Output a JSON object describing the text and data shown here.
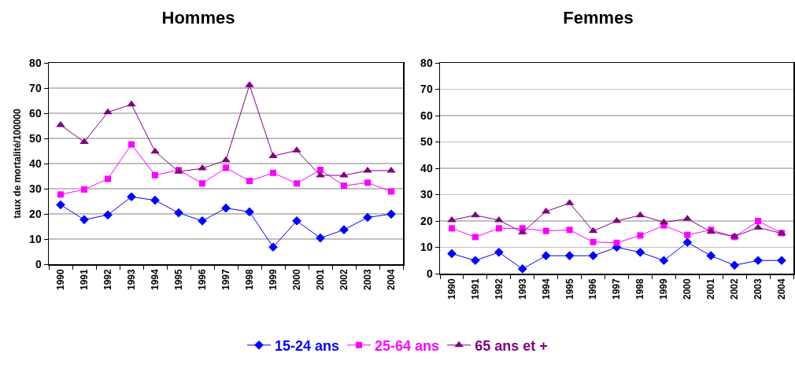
{
  "chart_data": [
    {
      "type": "line",
      "title": "Hommes",
      "ylabel": "taux de mortalité/100000",
      "categories": [
        "1990",
        "1991",
        "1992",
        "1993",
        "1994",
        "1995",
        "1996",
        "1997",
        "1998",
        "1999",
        "2000",
        "2001",
        "2002",
        "2003",
        "2004"
      ],
      "series": [
        {
          "name": "15-24 ans",
          "color": "#0000ff",
          "marker": "diamond",
          "values": [
            23.6,
            17.7,
            19.6,
            26.8,
            25.4,
            20.4,
            17.2,
            22.3,
            20.8,
            6.8,
            17.2,
            10.4,
            13.7,
            18.6,
            19.9
          ]
        },
        {
          "name": "25-64 ans",
          "color": "#ff00ff",
          "marker": "square",
          "values": [
            27.7,
            29.7,
            33.9,
            47.6,
            35.4,
            37.4,
            32.1,
            38.3,
            33.1,
            36.3,
            32.1,
            37.5,
            31.2,
            32.4,
            28.9
          ]
        },
        {
          "name": "65 ans et +",
          "color": "#800080",
          "marker": "triangle",
          "values": [
            55.3,
            48.6,
            60.4,
            63.5,
            44.8,
            36.8,
            38.1,
            41.3,
            71.2,
            43.0,
            45.2,
            35.3,
            35.3,
            37.2,
            37.2
          ]
        }
      ],
      "ylim": [
        0,
        80
      ],
      "yticks": [
        0,
        10,
        20,
        30,
        40,
        50,
        60,
        70,
        80
      ],
      "grid": "y",
      "legend": "bottom"
    },
    {
      "type": "line",
      "title": "Femmes",
      "categories": [
        "1990",
        "1991",
        "1992",
        "1993",
        "1994",
        "1995",
        "1996",
        "1997",
        "1998",
        "1999",
        "2000",
        "2001",
        "2002",
        "2003",
        "2004"
      ],
      "series": [
        {
          "color": "#0000ff",
          "marker": "diamond",
          "values": [
            7.6,
            5.0,
            8.1,
            1.8,
            6.8,
            6.8,
            6.8,
            10.0,
            8.1,
            5.0,
            11.9,
            6.8,
            3.2,
            5.0,
            5.0
          ]
        },
        {
          "color": "#ff00ff",
          "marker": "square",
          "values": [
            17.2,
            13.9,
            17.2,
            17.2,
            16.2,
            16.6,
            12.0,
            11.7,
            14.5,
            18.3,
            14.7,
            16.6,
            13.9,
            20.0,
            15.4
          ]
        },
        {
          "color": "#800080",
          "marker": "triangle",
          "values": [
            20.3,
            22.2,
            20.3,
            15.7,
            23.6,
            26.8,
            16.2,
            20.0,
            22.2,
            19.5,
            20.8,
            15.9,
            14.1,
            17.5,
            15.3
          ]
        }
      ],
      "ylim": [
        0,
        80
      ],
      "yticks": [
        0,
        10,
        20,
        30,
        40,
        50,
        60,
        70,
        80
      ],
      "grid": "y"
    }
  ]
}
